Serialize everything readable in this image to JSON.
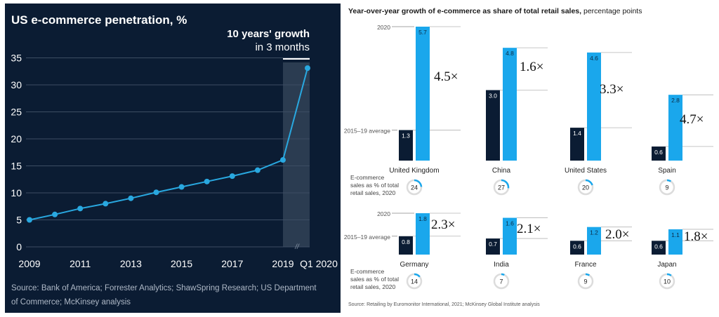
{
  "left_chart": {
    "title": "US e-commerce penetration, %",
    "callout_line1": "10 years' growth",
    "callout_line2": "in 3 months",
    "source": "Source: Bank of America; Forrester Analytics; ShawSpring Research; US Department of Commerce; McKinsey analysis",
    "source_line1": "Source: Bank of America; Forrester Analytics; ShawSpring Research; US Department",
    "source_line2": "of Commerce; McKinsey analysis",
    "break_mark": "//"
  },
  "right_chart": {
    "title_bold": "Year-over-year growth of e-commerce as share of total retail sales,",
    "title_regular": " percentage points",
    "label_2020": "2020",
    "label_avg": "2015–19 average",
    "ecommerce_label": [
      "E-commerce",
      "sales as % of total",
      "retail sales, 2020"
    ],
    "source": "Source: Retailing by Euromonitor International, 2021; McKinsey Global Institute analysis"
  },
  "chart_data": [
    {
      "type": "line",
      "title": "US e-commerce penetration, %",
      "x_tick_labels": [
        "2009",
        "2011",
        "2013",
        "2015",
        "2017",
        "2019",
        "Q1 2020"
      ],
      "y_ticks": [
        0,
        5,
        10,
        15,
        20,
        25,
        30,
        35
      ],
      "ylim": [
        0,
        35
      ],
      "grid": true,
      "accent_color": "#29a8e0",
      "points": [
        {
          "x": "2009",
          "y": 5.0
        },
        {
          "x": "2010",
          "y": 6.0
        },
        {
          "x": "2011",
          "y": 7.1
        },
        {
          "x": "2012",
          "y": 8.0
        },
        {
          "x": "2013",
          "y": 9.0
        },
        {
          "x": "2014",
          "y": 10.1
        },
        {
          "x": "2015",
          "y": 11.1
        },
        {
          "x": "2016",
          "y": 12.1
        },
        {
          "x": "2017",
          "y": 13.1
        },
        {
          "x": "2018",
          "y": 14.2
        },
        {
          "x": "2019",
          "y": 16.1
        },
        {
          "x": "Q1 2020",
          "y": 33.1
        }
      ],
      "highlight": {
        "from": "2019",
        "to": "Q1 2020",
        "label": "10 years' growth in 3 months"
      }
    },
    {
      "type": "bar",
      "title": "Year-over-year growth of e-commerce as share of total retail sales, percentage points",
      "series": [
        {
          "name": "2015–19 average",
          "color": "#0b1c33"
        },
        {
          "name": "2020",
          "color": "#1aa7ec"
        }
      ],
      "countries": [
        {
          "name": "United Kingdom",
          "avg": 1.3,
          "y2020": 5.7,
          "multiplier": "4.5×",
          "share_2020": 24
        },
        {
          "name": "China",
          "avg": 3.0,
          "y2020": 4.8,
          "multiplier": "1.6×",
          "share_2020": 27
        },
        {
          "name": "United States",
          "avg": 1.4,
          "y2020": 4.6,
          "multiplier": "3.3×",
          "share_2020": 20
        },
        {
          "name": "Spain",
          "avg": 0.6,
          "y2020": 2.8,
          "multiplier": "4.7×",
          "share_2020": 9
        },
        {
          "name": "Germany",
          "avg": 0.8,
          "y2020": 1.8,
          "multiplier": "2.3×",
          "share_2020": 14
        },
        {
          "name": "India",
          "avg": 0.7,
          "y2020": 1.6,
          "multiplier": "2.1×",
          "share_2020": 7
        },
        {
          "name": "France",
          "avg": 0.6,
          "y2020": 1.2,
          "multiplier": "2.0×",
          "share_2020": 9
        },
        {
          "name": "Japan",
          "avg": 0.6,
          "y2020": 1.1,
          "multiplier": "1.8×",
          "share_2020": 10
        }
      ]
    }
  ]
}
